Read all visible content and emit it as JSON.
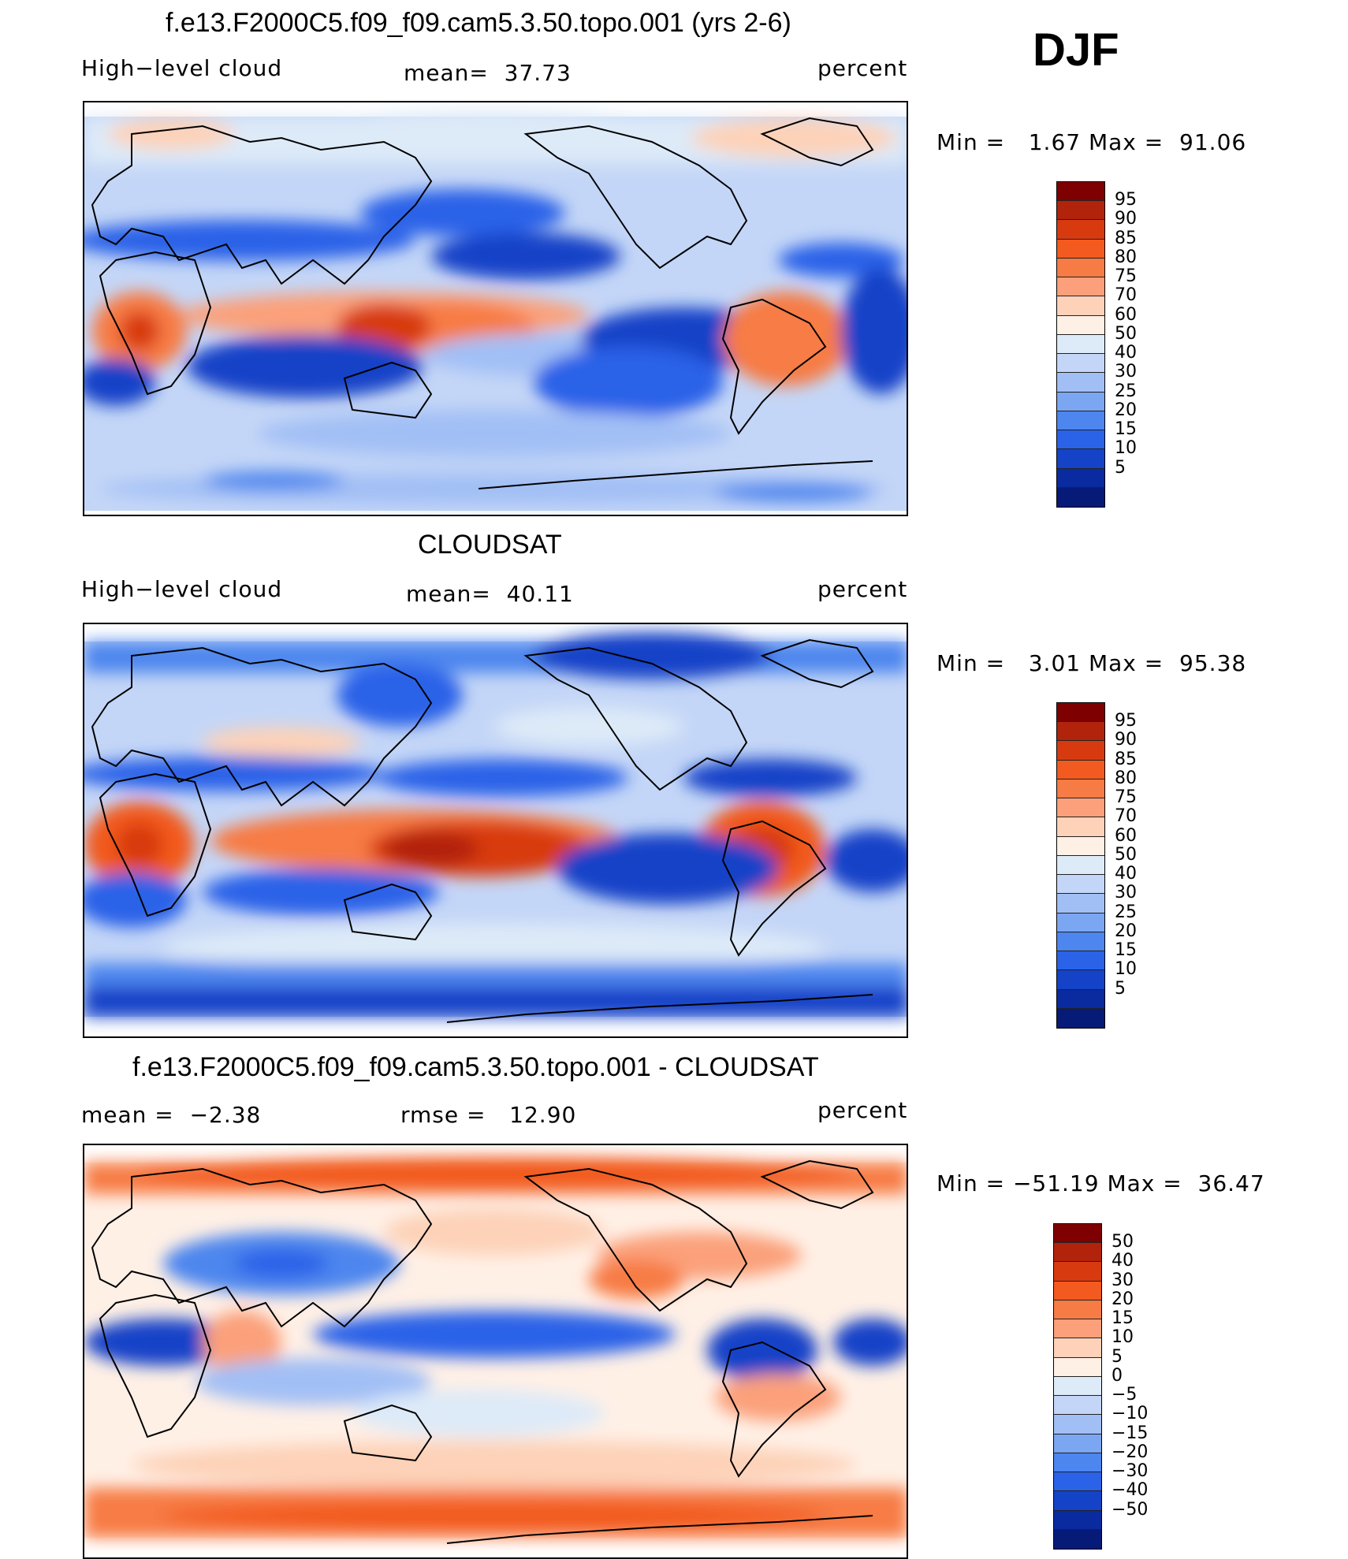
{
  "season": "DJF",
  "panels": [
    {
      "id": "model",
      "title": "f.e13.F2000C5.f09_f09.cam5.3.50.topo.001 (yrs 2-6)",
      "left_label": "High−level cloud",
      "center_label": "mean=  37.73",
      "right_label": "percent",
      "minmax": "Min =   1.67 Max =  91.06",
      "colorbar": {
        "colors": [
          "#7f0000",
          "#b2230c",
          "#d83a10",
          "#f25a1f",
          "#f77b45",
          "#fba07a",
          "#fdd2b8",
          "#fff0e6",
          "#ddeaf8",
          "#c4d6f7",
          "#a2bff5",
          "#7ba6f2",
          "#4d86ee",
          "#2a62e8",
          "#1443c8",
          "#0a2aa0",
          "#061a78"
        ],
        "labels": [
          "95",
          "90",
          "85",
          "80",
          "75",
          "70",
          "60",
          "50",
          "40",
          "30",
          "25",
          "20",
          "15",
          "10",
          "5"
        ]
      }
    },
    {
      "id": "obs",
      "title": "CLOUDSAT",
      "left_label": "High−level cloud",
      "center_label": "mean=  40.11",
      "right_label": "percent",
      "minmax": "Min =   3.01 Max =  95.38",
      "colorbar": {
        "colors": [
          "#7f0000",
          "#b2230c",
          "#d83a10",
          "#f25a1f",
          "#f77b45",
          "#fba07a",
          "#fdd2b8",
          "#fff0e6",
          "#ddeaf8",
          "#c4d6f7",
          "#a2bff5",
          "#7ba6f2",
          "#4d86ee",
          "#2a62e8",
          "#1443c8",
          "#0a2aa0",
          "#061a78"
        ],
        "labels": [
          "95",
          "90",
          "85",
          "80",
          "75",
          "70",
          "60",
          "50",
          "40",
          "30",
          "25",
          "20",
          "15",
          "10",
          "5"
        ]
      }
    },
    {
      "id": "diff",
      "title": "f.e13.F2000C5.f09_f09.cam5.3.50.topo.001 - CLOUDSAT",
      "left_label": "mean =  −2.38",
      "center_label": "rmse =   12.90",
      "right_label": "percent",
      "minmax": "Min = −51.19 Max =  36.47",
      "colorbar": {
        "colors": [
          "#7f0000",
          "#b2230c",
          "#d83a10",
          "#f25a1f",
          "#f77b45",
          "#fba07a",
          "#fdd2b8",
          "#fff0e6",
          "#ddeaf8",
          "#c4d6f7",
          "#a2bff5",
          "#7ba6f2",
          "#4d86ee",
          "#2a62e8",
          "#1443c8",
          "#0a2aa0",
          "#061a78"
        ],
        "labels": [
          "50",
          "40",
          "30",
          "20",
          "15",
          "10",
          "5",
          "0",
          "−5",
          "−10",
          "−15",
          "−20",
          "−30",
          "−40",
          "−50"
        ]
      }
    }
  ]
}
